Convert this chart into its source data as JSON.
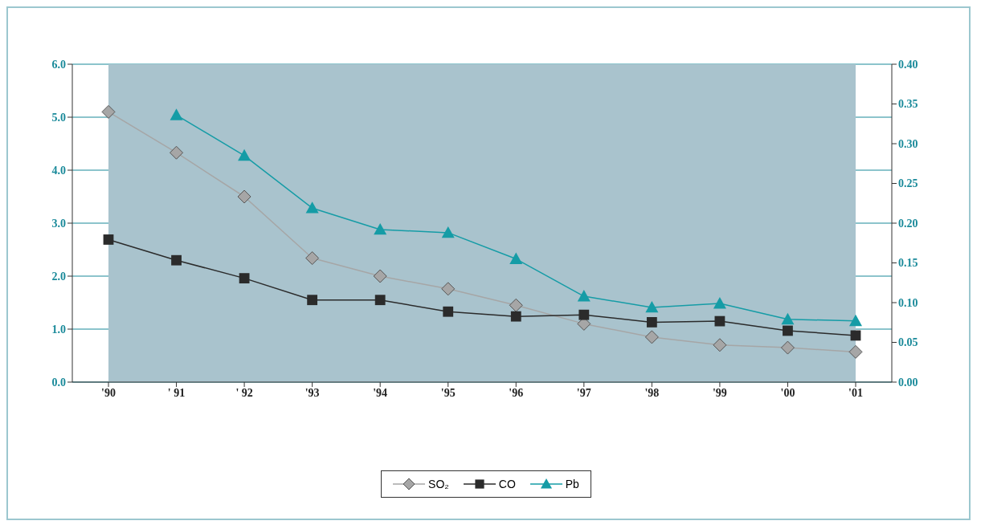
{
  "chart_data": {
    "type": "line",
    "categories": [
      "'90",
      "' 91",
      "' 92",
      "'93",
      "'94",
      "'95",
      "'96",
      "'97",
      "'98",
      "'99",
      "'00",
      "'01"
    ],
    "series": [
      {
        "name": "SO₂",
        "color": "#a6a6a6",
        "marker": "diamond",
        "values": [
          5.1,
          4.33,
          3.5,
          2.34,
          2.0,
          1.76,
          1.45,
          1.1,
          0.85,
          0.7,
          0.65,
          0.57
        ]
      },
      {
        "name": "CO",
        "color": "#2b2b2b",
        "marker": "square",
        "values": [
          2.69,
          2.3,
          1.96,
          1.55,
          1.55,
          1.33,
          1.24,
          1.27,
          1.13,
          1.15,
          0.97,
          0.88
        ]
      },
      {
        "name": "Pb",
        "color": "#159ca6",
        "marker": "triangle",
        "axis": "y2",
        "values": [
          null,
          0.336,
          0.285,
          0.219,
          0.192,
          0.188,
          0.155,
          0.108,
          0.094,
          0.099,
          0.079,
          0.077
        ]
      }
    ],
    "ylim": [
      0,
      6
    ],
    "yticks": [
      {
        "value": 0,
        "label": "0.0"
      },
      {
        "value": 1,
        "label": "1.0"
      },
      {
        "value": 2,
        "label": "2.0"
      },
      {
        "value": 3,
        "label": "3.0"
      },
      {
        "value": 4,
        "label": "4.0"
      },
      {
        "value": 5,
        "label": "5.0"
      },
      {
        "value": 6,
        "label": "6.0"
      }
    ],
    "y2lim": [
      0,
      0.4
    ],
    "y2ticks": [
      {
        "value": 0,
        "label": "0.00"
      },
      {
        "value": 0.05,
        "label": "0.05"
      },
      {
        "value": 0.1,
        "label": "0.10"
      },
      {
        "value": 0.15,
        "label": "0.15"
      },
      {
        "value": 0.2,
        "label": "0.20"
      },
      {
        "value": 0.25,
        "label": "0.25"
      },
      {
        "value": 0.3,
        "label": "0.30"
      },
      {
        "value": 0.35,
        "label": "0.35"
      },
      {
        "value": 0.4,
        "label": "0.40"
      }
    ],
    "grid": "y",
    "legend": "bottom"
  }
}
